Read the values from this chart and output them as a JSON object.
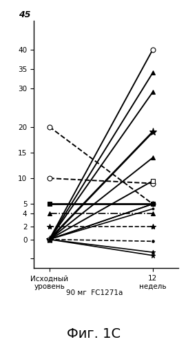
{
  "title": "Фиг. 1С",
  "x0_label": "Исходный\nуровень",
  "x1_label": "12\nнедель",
  "x_middle_label": "90 мг  FC1271a",
  "ytick_vals": [
    -3,
    0,
    2,
    4,
    5,
    10,
    15,
    20,
    30,
    35,
    40,
    45
  ],
  "ytick_labels": [
    " ",
    "0",
    "2",
    "4",
    "5",
    "10",
    "15",
    "20",
    "30",
    "35",
    "40",
    ""
  ],
  "ytick_pos": [
    0.0,
    3.0,
    5.0,
    7.0,
    8.5,
    12.5,
    16.5,
    20.5,
    26.5,
    29.5,
    32.5,
    35.5
  ],
  "ylim": [
    -1.5,
    37.0
  ],
  "xlim": [
    -0.15,
    1.25
  ],
  "series": [
    {
      "sv": 20,
      "ev": 5,
      "ls": "--",
      "mk": "o",
      "lw": 1.4,
      "ms": 5,
      "mfc": "white"
    },
    {
      "sv": 10,
      "ev": 9,
      "ls": "--",
      "mk": "o",
      "lw": 1.4,
      "ms": 5,
      "mfc": "white"
    },
    {
      "sv": 5,
      "ev": 5,
      "ls": "-",
      "mk": "s",
      "lw": 2.0,
      "ms": 5,
      "mfc": "black"
    },
    {
      "sv": 4,
      "ev": 4,
      "ls": "-.",
      "mk": "^",
      "lw": 1.2,
      "ms": 5,
      "mfc": "black"
    },
    {
      "sv": 2,
      "ev": 2,
      "ls": "--",
      "mk": "*",
      "lw": 1.2,
      "ms": 6,
      "mfc": "black"
    },
    {
      "sv": 0,
      "ev": -0.3,
      "ls": "--",
      "mk": ".",
      "lw": 1.2,
      "ms": 5,
      "mfc": "black"
    },
    {
      "sv": 0,
      "ev": 40,
      "ls": "-",
      "mk": "o",
      "lw": 1.4,
      "ms": 5,
      "mfc": "white"
    },
    {
      "sv": 0,
      "ev": 34,
      "ls": "-",
      "mk": "^",
      "lw": 1.4,
      "ms": 5,
      "mfc": "black"
    },
    {
      "sv": 0,
      "ev": 29,
      "ls": "-",
      "mk": "^",
      "lw": 1.4,
      "ms": 5,
      "mfc": "black"
    },
    {
      "sv": 0,
      "ev": 19,
      "ls": "-",
      "mk": "*",
      "lw": 2.0,
      "ms": 8,
      "mfc": "black"
    },
    {
      "sv": 0,
      "ev": 14,
      "ls": "-",
      "mk": "^",
      "lw": 1.4,
      "ms": 5,
      "mfc": "black"
    },
    {
      "sv": 0,
      "ev": 9.5,
      "ls": "-",
      "mk": "s",
      "lw": 1.4,
      "ms": 5,
      "mfc": "white"
    },
    {
      "sv": 0,
      "ev": 5,
      "ls": "-",
      "mk": ".",
      "lw": 1.2,
      "ms": 4,
      "mfc": "black"
    },
    {
      "sv": 0,
      "ev": 5,
      "ls": "-",
      "mk": ".",
      "lw": 1.2,
      "ms": 4,
      "mfc": "black"
    },
    {
      "sv": 0,
      "ev": 4.5,
      "ls": "-",
      "mk": ".",
      "lw": 1.2,
      "ms": 4,
      "mfc": "black"
    },
    {
      "sv": 0,
      "ev": -2,
      "ls": "-",
      "mk": "*",
      "lw": 1.2,
      "ms": 5,
      "mfc": "black"
    },
    {
      "sv": 0,
      "ev": -2.5,
      "ls": "-",
      "mk": "*",
      "lw": 1.2,
      "ms": 5,
      "mfc": "black"
    }
  ]
}
